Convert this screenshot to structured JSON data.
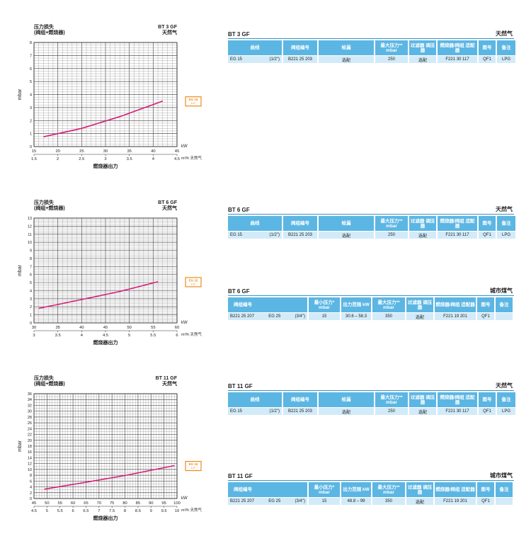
{
  "chart_data": [
    {
      "type": "line",
      "model": "BT 3 GF",
      "title_line1": "压力损失",
      "title_line2": "(阀组+燃烧器)",
      "gas": "天然气",
      "ylabel": "mbar",
      "ylim": [
        0,
        8
      ],
      "yticks": [
        "0",
        "1",
        "2",
        "3",
        "4",
        "5",
        "6",
        "7",
        "8"
      ],
      "x_kw_label": "kW",
      "x_kw_ticks": [
        "15",
        "20",
        "25",
        "30",
        "35",
        "40",
        "45"
      ],
      "xlim_kw": [
        15,
        45
      ],
      "x_m3h_label": "m³/h 天然气",
      "x_m3h_ticks": [
        "1.5",
        "2",
        "2.5",
        "3",
        "3.5",
        "4",
        "4.5"
      ],
      "xlabel": "燃烧器出力",
      "series": [
        {
          "name": "EG 15 1/2\"",
          "x": [
            17,
            25,
            33,
            42
          ],
          "y": [
            0.75,
            1.4,
            2.3,
            3.5
          ]
        }
      ],
      "legend_line1": "EG 15",
      "legend_line2": "1/2\""
    },
    {
      "type": "line",
      "model": "BT 6 GF",
      "title_line1": "压力损失",
      "title_line2": "(阀组+燃烧器)",
      "gas": "天然气",
      "ylabel": "mbar",
      "ylim": [
        0,
        13
      ],
      "yticks": [
        "0",
        "1",
        "2",
        "3",
        "4",
        "5",
        "6",
        "7",
        "8",
        "9",
        "10",
        "11",
        "12",
        "13"
      ],
      "x_kw_label": "kW",
      "x_kw_ticks": [
        "30",
        "35",
        "40",
        "45",
        "50",
        "55",
        "60"
      ],
      "xlim_kw": [
        30,
        60
      ],
      "x_m3h_label": "m³/h 天然气",
      "x_m3h_ticks": [
        "3",
        "3.5",
        "4",
        "4.5",
        "5",
        "5.5",
        "6"
      ],
      "xlabel": "燃烧器出力",
      "series": [
        {
          "name": "EG 15 1/2\"",
          "x": [
            31,
            40,
            48,
            56
          ],
          "y": [
            1.8,
            2.9,
            3.9,
            5.1
          ]
        }
      ],
      "legend_line1": "EG 15",
      "legend_line2": "1/2\""
    },
    {
      "type": "line",
      "model": "BT 11 GF",
      "title_line1": "压力损失",
      "title_line2": "(阀组+燃烧器)",
      "gas": "天然气",
      "ylabel": "mbar",
      "ylim": [
        0,
        36
      ],
      "yticks": [
        "0",
        "2",
        "4",
        "6",
        "8",
        "10",
        "12",
        "14",
        "16",
        "18",
        "20",
        "22",
        "24",
        "26",
        "28",
        "30",
        "32",
        "34",
        "36"
      ],
      "x_kw_label": "kW",
      "x_kw_ticks": [
        "45",
        "50",
        "55",
        "60",
        "65",
        "70",
        "75",
        "80",
        "85",
        "90",
        "95",
        "100"
      ],
      "xlim_kw": [
        45,
        100
      ],
      "x_m3h_label": "m³/h 天然气",
      "x_m3h_ticks": [
        "4.5",
        "5",
        "5.5",
        "6",
        "6.5",
        "7",
        "7.5",
        "8",
        "8.5",
        "9",
        "9.5",
        "10"
      ],
      "xlabel": "燃烧器出力",
      "series": [
        {
          "name": "EG 15 1/2\"",
          "x": [
            49,
            65,
            80,
            99
          ],
          "y": [
            3.2,
            5.6,
            7.9,
            11.3
          ]
        }
      ],
      "legend_line1": "EG 15",
      "legend_line2": "1/2\""
    }
  ],
  "tables": {
    "t1": {
      "model": "BT 3 GF",
      "gas": "天然气",
      "headers": [
        "曲线",
        "阀组编号",
        "检漏",
        "最大压力** mbar",
        "过滤器 调压器",
        "燃烧器/阀组 适配器",
        "图号",
        "备注"
      ],
      "row": {
        "curve": "EG 15",
        "size": "(1/2\")",
        "valve": "B221 25 203",
        "leak": "选配",
        "pmax": "250",
        "filter": "选配",
        "adapter": "F221 30 117",
        "fig": "QF1",
        "note": "LPG"
      }
    },
    "t2": {
      "model": "BT 6 GF",
      "gas": "天然气",
      "headers": [
        "曲线",
        "阀组编号",
        "检漏",
        "最大压力** mbar",
        "过滤器 调压器",
        "燃烧器/阀组 适配器",
        "图号",
        "备注"
      ],
      "row": {
        "curve": "EG 15",
        "size": "(1/2\")",
        "valve": "B221 25 203",
        "leak": "选配",
        "pmax": "250",
        "filter": "选配",
        "adapter": "F221 30 117",
        "fig": "QF1",
        "note": "LPG"
      }
    },
    "t3": {
      "model": "BT 6 GF",
      "gas": "城市煤气",
      "headers": [
        "阀组编号",
        "最小压力* mbar",
        "出力范围 kW",
        "最大压力** mbar",
        "过滤器 调压器",
        "燃烧器/阀组 适配器",
        "图号",
        "备注"
      ],
      "row": {
        "valve": "B221 25 207",
        "model": "EG 25",
        "size": "(3/4\")",
        "pmin": "15",
        "range": "30.6 – 58.3",
        "pmax": "350",
        "filter": "选配",
        "adapter": "F221 19 201",
        "fig": "QF1",
        "note": ""
      }
    },
    "t4": {
      "model": "BT 11 GF",
      "gas": "天然气",
      "headers": [
        "曲线",
        "阀组编号",
        "检漏",
        "最大压力** mbar",
        "过滤器 调压器",
        "燃烧器/阀组 适配器",
        "图号",
        "备注"
      ],
      "row": {
        "curve": "EG 15",
        "size": "(1/2\")",
        "valve": "B221 25 203",
        "leak": "选配",
        "pmax": "250",
        "filter": "选配",
        "adapter": "F221 30 117",
        "fig": "QF1",
        "note": "LPG"
      }
    },
    "t5": {
      "model": "BT 11 GF",
      "gas": "城市煤气",
      "headers": [
        "阀组编号",
        "最小压力* mbar",
        "出力范围 kW",
        "最大压力** mbar",
        "过滤器 调压器",
        "燃烧器/阀组 适配器",
        "图号",
        "备注"
      ],
      "row": {
        "valve": "B221 25 207",
        "model": "EG 25",
        "size": "(3/4\")",
        "pmin": "15",
        "range": "48.8 – 99",
        "pmax": "350",
        "filter": "选配",
        "adapter": "F221 19 201",
        "fig": "QF1",
        "note": ""
      }
    }
  }
}
